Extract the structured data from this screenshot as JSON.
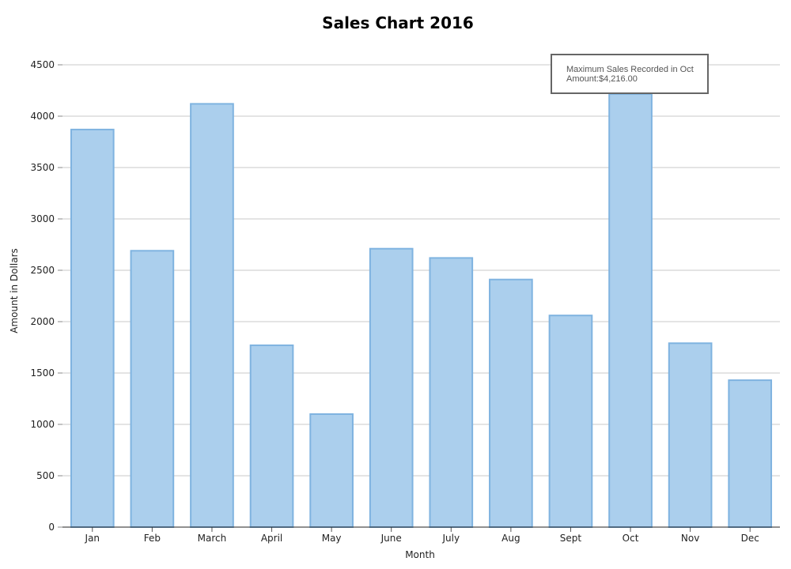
{
  "chart_data": {
    "type": "bar",
    "title": "Sales Chart 2016",
    "xlabel": "Month",
    "ylabel": "Amount in Dollars",
    "categories": [
      "Jan",
      "Feb",
      "March",
      "April",
      "May",
      "June",
      "July",
      "Aug",
      "Sept",
      "Oct",
      "Nov",
      "Dec"
    ],
    "values": [
      3870,
      2690,
      4120,
      1770,
      1100,
      2710,
      2620,
      2410,
      2060,
      4216,
      1790,
      1430
    ],
    "ylim": [
      0,
      4500
    ],
    "yticks": [
      0,
      500,
      1000,
      1500,
      2000,
      2500,
      3000,
      3500,
      4000,
      4500
    ],
    "grid": true,
    "legend": "none",
    "bar_color": "#abcfed",
    "bar_border_color": "#7fb3e0",
    "grid_color": "#c8c8c8",
    "annotation": {
      "line1": "Maximum Sales Recorded in Oct",
      "line2": "Amount:$4,216.00"
    }
  }
}
